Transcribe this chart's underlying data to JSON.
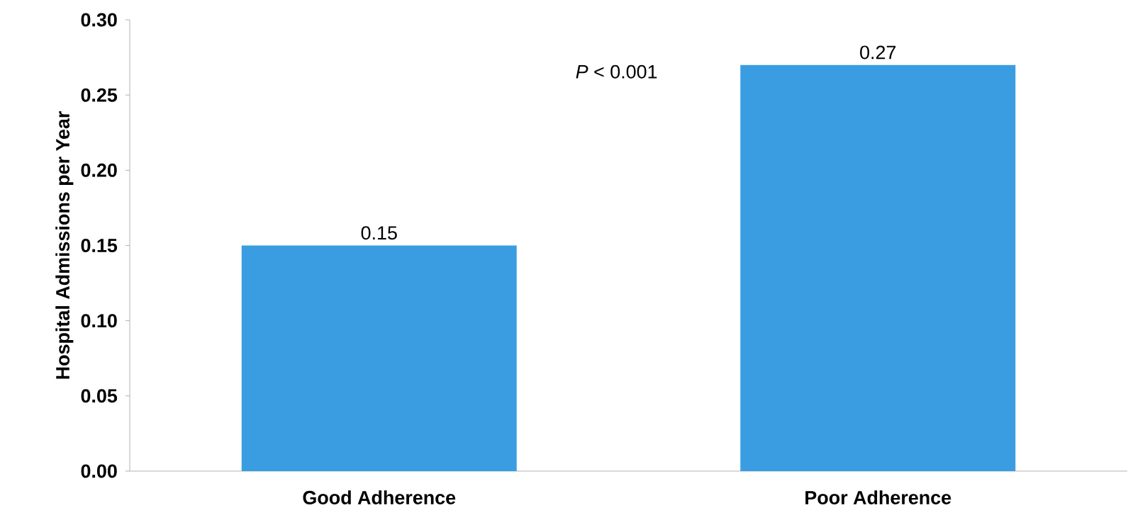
{
  "chart_data": {
    "type": "bar",
    "ylabel": "Hospital Admissions per Year",
    "categories": [
      "Good Adherence",
      "Poor Adherence"
    ],
    "values": [
      0.15,
      0.27
    ],
    "color": "#3a9de2",
    "data_labels": true,
    "ylim": [
      0,
      0.3
    ],
    "yticks": [
      {
        "value": 0,
        "label": "0.00"
      },
      {
        "value": 0.05,
        "label": "0.05"
      },
      {
        "value": 0.1,
        "label": "0.10"
      },
      {
        "value": 0.15,
        "label": "0.15"
      },
      {
        "value": 0.2,
        "label": "0.20"
      },
      {
        "value": 0.25,
        "label": "0.25"
      },
      {
        "value": 0.3,
        "label": "0.30"
      }
    ],
    "annotations": [
      "*P* < 0.001"
    ]
  }
}
